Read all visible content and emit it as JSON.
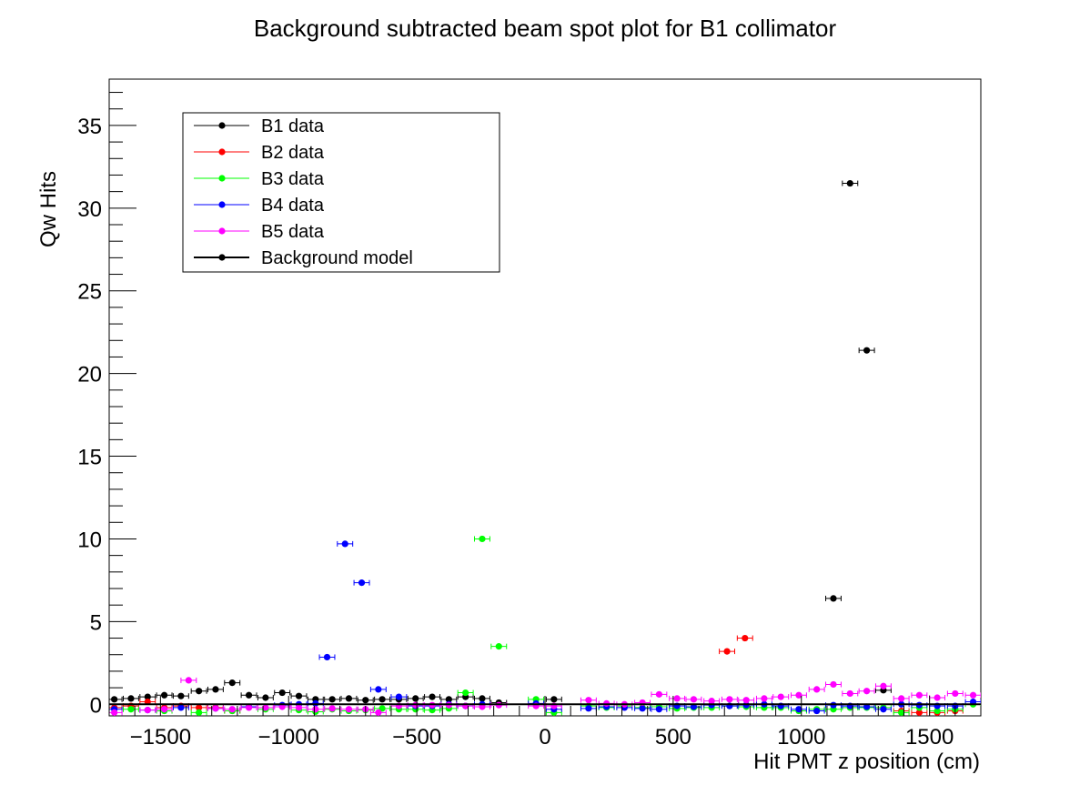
{
  "chart_data": {
    "type": "scatter",
    "title": "Background subtracted beam spot plot for B1 collimator",
    "xlabel": "Hit PMT z position (cm)",
    "ylabel": "Qw Hits",
    "xlim": [
      -1700,
      1700
    ],
    "ylim": [
      -0.7,
      37.8
    ],
    "x_ticks": [
      -1500,
      -1000,
      -500,
      0,
      500,
      1000,
      1500
    ],
    "x_tick_labels": [
      "−1500",
      "−1000",
      "−500",
      "0",
      "500",
      "1000",
      "1500"
    ],
    "y_ticks": [
      0,
      5,
      10,
      15,
      20,
      25,
      30,
      35
    ],
    "y_tick_labels": [
      "0",
      "5",
      "10",
      "15",
      "20",
      "25",
      "30",
      "35"
    ],
    "x_error": 30,
    "grid": false,
    "legend_position": "top-left",
    "series": [
      {
        "name": "B1 data",
        "color": "#000000",
        "x": [
          -1680,
          -1615,
          -1550,
          -1485,
          -1420,
          -1350,
          -1285,
          -1220,
          -1155,
          -1090,
          -1025,
          -960,
          -895,
          -830,
          -765,
          -700,
          -635,
          -570,
          -505,
          -440,
          -375,
          -310,
          -245,
          -180,
          35,
          1125,
          1190,
          1255,
          1320
        ],
        "y": [
          0.3,
          0.35,
          0.45,
          0.55,
          0.5,
          0.8,
          0.9,
          1.3,
          0.55,
          0.4,
          0.7,
          0.5,
          0.3,
          0.3,
          0.35,
          0.25,
          0.3,
          0.3,
          0.35,
          0.45,
          0.3,
          0.45,
          0.35,
          0.1,
          0.3,
          6.4,
          31.5,
          21.4,
          0.85
        ]
      },
      {
        "name": "B2 data",
        "color": "#ff0000",
        "x": [
          -1680,
          -1615,
          -1550,
          -1485,
          -1420,
          -1350,
          -1285,
          -1220,
          710,
          780,
          1390,
          1460,
          1530,
          1600
        ],
        "y": [
          -0.2,
          -0.1,
          0.15,
          -0.2,
          -0.1,
          -0.2,
          -0.2,
          -0.4,
          3.2,
          4.0,
          -0.4,
          -0.5,
          -0.5,
          -0.4
        ]
      },
      {
        "name": "B3 data",
        "color": "#00ff00",
        "x": [
          -1615,
          -1485,
          -1350,
          -1220,
          -1090,
          -960,
          -895,
          -830,
          -765,
          -700,
          -635,
          -570,
          -505,
          -440,
          -375,
          -310,
          -245,
          -180,
          -35,
          35,
          170,
          240,
          310,
          380,
          445,
          515,
          580,
          650,
          720,
          785,
          855,
          920,
          990,
          1060,
          1125,
          1190,
          1255,
          1320,
          1390,
          1460,
          1530,
          1600,
          1670
        ],
        "y": [
          -0.3,
          -0.4,
          -0.5,
          -0.4,
          -0.3,
          -0.35,
          -0.45,
          -0.3,
          -0.4,
          -0.35,
          -0.25,
          -0.3,
          -0.3,
          -0.35,
          -0.25,
          0.7,
          10.0,
          3.5,
          0.3,
          -0.5,
          -0.1,
          -0.2,
          -0.1,
          -0.2,
          -0.15,
          -0.25,
          -0.2,
          -0.2,
          -0.1,
          -0.15,
          -0.2,
          -0.2,
          -0.4,
          -0.3,
          -0.3,
          -0.2,
          -0.2,
          -0.2,
          -0.5,
          -0.2,
          -0.4,
          -0.3,
          0.0
        ]
      },
      {
        "name": "B4 data",
        "color": "#0000ff",
        "x": [
          -1680,
          -1550,
          -1420,
          -1285,
          -1155,
          -1025,
          -960,
          -895,
          -850,
          -780,
          -715,
          -650,
          -570,
          -505,
          -440,
          -375,
          -310,
          -245,
          -35,
          35,
          170,
          240,
          310,
          380,
          445,
          515,
          580,
          650,
          720,
          785,
          855,
          920,
          990,
          1060,
          1125,
          1190,
          1255,
          1320,
          1390,
          1460,
          1530,
          1600,
          1670
        ],
        "y": [
          -0.3,
          -0.35,
          -0.2,
          -0.25,
          -0.15,
          -0.05,
          0.0,
          0.05,
          2.85,
          9.7,
          7.35,
          0.9,
          0.45,
          -0.1,
          -0.1,
          0.0,
          -0.1,
          0.0,
          0.05,
          -0.3,
          -0.25,
          -0.15,
          -0.2,
          -0.25,
          -0.3,
          -0.1,
          -0.15,
          -0.05,
          -0.1,
          -0.05,
          0.0,
          -0.1,
          -0.3,
          -0.4,
          -0.05,
          -0.1,
          -0.15,
          -0.3,
          0.0,
          -0.05,
          -0.1,
          -0.1,
          0.15
        ]
      },
      {
        "name": "B5 data",
        "color": "#ff00ff",
        "x": [
          -1680,
          -1550,
          -1485,
          -1390,
          -1285,
          -1220,
          -1155,
          -1090,
          -1025,
          -960,
          -895,
          -830,
          -765,
          -700,
          -650,
          -570,
          -505,
          -440,
          -375,
          -310,
          -245,
          -180,
          -35,
          35,
          170,
          240,
          310,
          380,
          445,
          515,
          580,
          650,
          720,
          785,
          855,
          920,
          990,
          1060,
          1125,
          1190,
          1255,
          1320,
          1390,
          1460,
          1530,
          1600,
          1670
        ],
        "y": [
          -0.5,
          -0.35,
          -0.3,
          1.45,
          -0.25,
          -0.3,
          -0.2,
          -0.2,
          -0.15,
          -0.2,
          -0.3,
          -0.25,
          -0.3,
          -0.3,
          -0.5,
          -0.1,
          -0.05,
          -0.05,
          -0.05,
          -0.1,
          -0.15,
          -0.05,
          -0.1,
          -0.1,
          0.25,
          0.05,
          0.0,
          0.1,
          0.6,
          0.35,
          0.3,
          0.2,
          0.3,
          0.25,
          0.35,
          0.45,
          0.55,
          0.9,
          1.2,
          0.65,
          0.8,
          1.1,
          0.35,
          0.55,
          0.4,
          0.65,
          0.55
        ]
      },
      {
        "name": "Background model",
        "color": "#000000",
        "line": true,
        "x": [
          -1700,
          1700
        ],
        "y": [
          0,
          0
        ]
      }
    ]
  }
}
